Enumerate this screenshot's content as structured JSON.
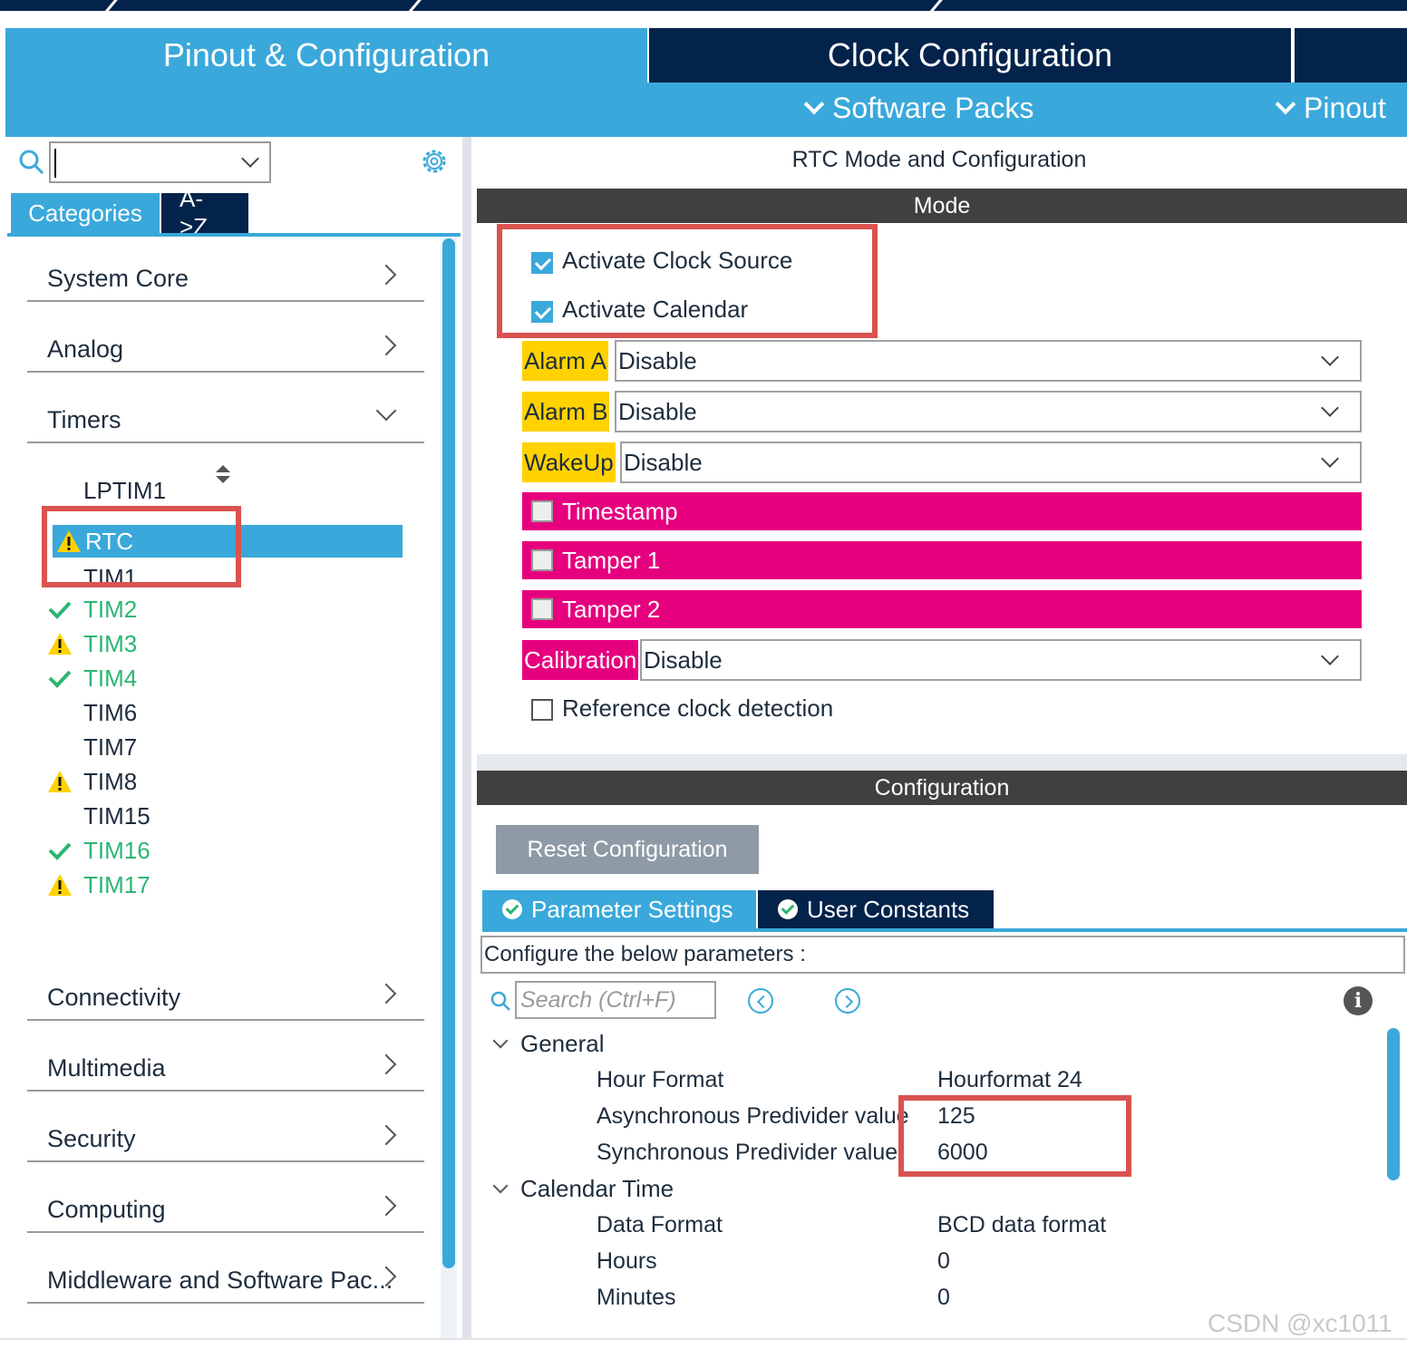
{
  "header": {
    "tab_pinout": "Pinout & Configuration",
    "tab_clock": "Clock Configuration",
    "software_packs": "Software Packs",
    "pinout_menu": "Pinout"
  },
  "left": {
    "search_value": "",
    "tab_categories": "Categories",
    "tab_az": "A->Z",
    "categories": [
      {
        "label": "System Core"
      },
      {
        "label": "Analog"
      },
      {
        "label": "Timers"
      },
      {
        "label": "Connectivity"
      },
      {
        "label": "Multimedia"
      },
      {
        "label": "Security"
      },
      {
        "label": "Computing"
      },
      {
        "label": "Middleware and Software Pac..."
      }
    ],
    "timers": {
      "lptim1": "LPTIM1",
      "rtc": "RTC",
      "tim1": "TIM1",
      "items": [
        {
          "label": "TIM2",
          "status": "ok"
        },
        {
          "label": "TIM3",
          "status": "warning"
        },
        {
          "label": "TIM4",
          "status": "ok"
        },
        {
          "label": "TIM6",
          "status": "none"
        },
        {
          "label": "TIM7",
          "status": "none"
        },
        {
          "label": "TIM8",
          "status": "warning"
        },
        {
          "label": "TIM15",
          "status": "none"
        },
        {
          "label": "TIM16",
          "status": "ok"
        },
        {
          "label": "TIM17",
          "status": "warning"
        }
      ]
    }
  },
  "right": {
    "title": "RTC Mode and Configuration",
    "mode_bar": "Mode",
    "activate_clock_source": "Activate Clock Source",
    "activate_calendar": "Activate Calendar",
    "alarm_a_label": "Alarm A",
    "alarm_a_value": "Disable",
    "alarm_b_label": "Alarm B",
    "alarm_b_value": "Disable",
    "wakeup_label": "WakeUp",
    "wakeup_value": "Disable",
    "timestamp": "Timestamp",
    "tamper1": "Tamper 1",
    "tamper2": "Tamper 2",
    "calibration_label": "Calibration",
    "calibration_value": "Disable",
    "reference_clock": "Reference clock detection",
    "config_bar": "Configuration",
    "reset_button": "Reset Configuration",
    "tab_parameter": "Parameter Settings",
    "tab_user_constants": "User Constants",
    "configure_text": "Configure the below parameters :",
    "search_placeholder": "Search (Ctrl+F)",
    "general": "General",
    "hour_format_label": "Hour Format",
    "hour_format_value": "Hourformat 24",
    "async_label": "Asynchronous Predivider value",
    "async_value": "125",
    "sync_label": "Synchronous Predivider value",
    "sync_value": "6000",
    "calendar_time": "Calendar Time",
    "data_format_label": "Data Format",
    "data_format_value": "BCD data format",
    "hours_label": "Hours",
    "hours_value": "0",
    "minutes_label": "Minutes",
    "minutes_value": "0"
  },
  "watermark": "CSDN @xc1011",
  "colors": {
    "accent": "#3aa8da",
    "navy": "#03234b",
    "alarm_yellow": "#ffd200",
    "magenta": "#e6007e",
    "highlight_red": "#d9534f",
    "ok_green": "#2bb673",
    "warn_yellow": "#ffd200"
  }
}
